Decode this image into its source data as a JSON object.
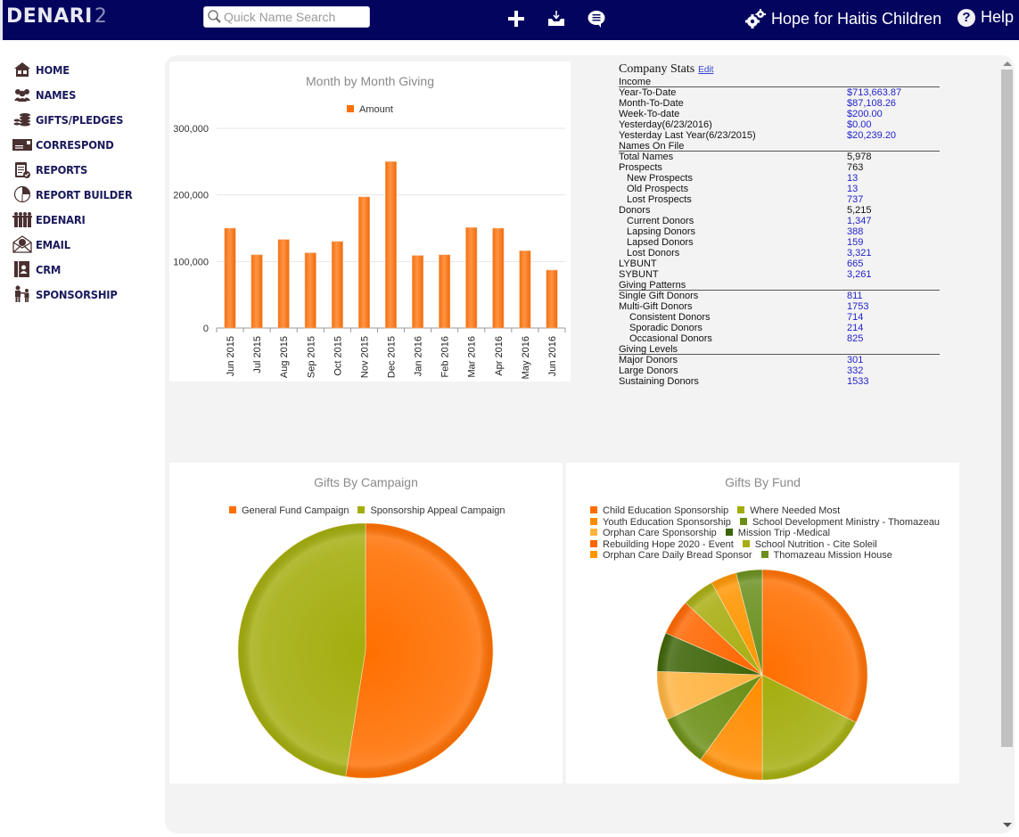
{
  "header": {
    "logo_main": "DENARI",
    "logo_num": "2",
    "search_placeholder": "Quick Name Search",
    "icons": [
      "plus-icon",
      "download-tray-icon",
      "chat-bubble-icon"
    ],
    "organization": "Hope for Haitis Children",
    "help_label": "Help"
  },
  "sidebar": {
    "items": [
      {
        "label": "HOME",
        "icon": "house-icon"
      },
      {
        "label": "NAMES",
        "icon": "people-icon"
      },
      {
        "label": "GIFTS/PLEDGES",
        "icon": "coins-icon"
      },
      {
        "label": "CORRESPOND",
        "icon": "letter-icon"
      },
      {
        "label": "REPORTS",
        "icon": "clipboard-check-icon"
      },
      {
        "label": "REPORT BUILDER",
        "icon": "pie-chart-icon"
      },
      {
        "label": "EDENARI",
        "icon": "group-hands-icon"
      },
      {
        "label": "EMAIL",
        "icon": "envelope-open-icon"
      },
      {
        "label": "CRM",
        "icon": "contact-book-icon"
      },
      {
        "label": "SPONSORSHIP",
        "icon": "adult-child-icon"
      }
    ]
  },
  "company_stats": {
    "title": "Company Stats",
    "edit_label": "Edit",
    "sections": [
      {
        "title": "Income",
        "rows": [
          {
            "label": "Year-To-Date",
            "value": "$713,663.87",
            "indent": 0,
            "link": true
          },
          {
            "label": "Month-To-Date",
            "value": "$87,108.26",
            "indent": 0,
            "link": true
          },
          {
            "label": "Week-To-date",
            "value": "$200.00",
            "indent": 0,
            "link": true
          },
          {
            "label": "Yesterday(6/23/2016)",
            "value": "$0.00",
            "indent": 0,
            "link": true
          },
          {
            "label": "Yesterday Last Year(6/23/2015)",
            "value": "$20,239.20",
            "indent": 0,
            "link": true
          }
        ]
      },
      {
        "title": "Names On File",
        "rows": [
          {
            "label": "Total Names",
            "value": "5,978",
            "indent": 0,
            "link": false
          },
          {
            "label": "Prospects",
            "value": "763",
            "indent": 0,
            "link": false
          },
          {
            "label": "New Prospects",
            "value": "13",
            "indent": 1,
            "link": true
          },
          {
            "label": "Old Prospects",
            "value": "13",
            "indent": 1,
            "link": true
          },
          {
            "label": "Lost Prospects",
            "value": "737",
            "indent": 1,
            "link": true
          },
          {
            "label": "Donors",
            "value": "5,215",
            "indent": 0,
            "link": false
          },
          {
            "label": "Current Donors",
            "value": "1,347",
            "indent": 1,
            "link": true
          },
          {
            "label": "Lapsing Donors",
            "value": "388",
            "indent": 1,
            "link": true
          },
          {
            "label": "Lapsed Donors",
            "value": "159",
            "indent": 1,
            "link": true
          },
          {
            "label": "Lost Donors",
            "value": "3,321",
            "indent": 1,
            "link": true
          },
          {
            "label": "LYBUNT",
            "value": "665",
            "indent": 0,
            "link": true
          },
          {
            "label": "SYBUNT",
            "value": "3,261",
            "indent": 0,
            "link": true
          }
        ]
      },
      {
        "title": "Giving Patterns",
        "rows": [
          {
            "label": "Single Gift Donors",
            "value": "811",
            "indent": 0,
            "link": true
          },
          {
            "label": "Multi-Gift Donors",
            "value": "1753",
            "indent": 0,
            "link": true
          },
          {
            "label": "Consistent Donors",
            "value": "714",
            "indent": 2,
            "link": true
          },
          {
            "label": "Sporadic Donors",
            "value": "214",
            "indent": 2,
            "link": true
          },
          {
            "label": "Occasional Donors",
            "value": "825",
            "indent": 2,
            "link": true
          }
        ]
      },
      {
        "title": "Giving Levels",
        "rows": [
          {
            "label": "Major Donors",
            "value": "301",
            "indent": 0,
            "link": true
          },
          {
            "label": "Large Donors",
            "value": "332",
            "indent": 0,
            "link": true
          },
          {
            "label": "Sustaining Donors",
            "value": "1533",
            "indent": 0,
            "link": true
          }
        ]
      }
    ]
  },
  "chart_data": [
    {
      "type": "bar",
      "title": "Month by Month Giving",
      "legend": [
        "Amount"
      ],
      "legend_position": "top-center",
      "categories": [
        "Jun 2015",
        "Jul 2015",
        "Aug 2015",
        "Sep 2015",
        "Oct 2015",
        "Nov 2015",
        "Dec 2015",
        "Jan 2016",
        "Feb 2016",
        "Mar 2016",
        "Apr 2016",
        "May 2016",
        "Jun 2016"
      ],
      "series": [
        {
          "name": "Amount",
          "color": "#ff7a1a",
          "values": [
            150000,
            110000,
            133000,
            113000,
            130000,
            197000,
            250000,
            109000,
            110000,
            151000,
            150000,
            116000,
            87000
          ]
        }
      ],
      "yticks": [
        "0",
        "100,000",
        "200,000",
        "300,000"
      ],
      "ylim": [
        0,
        300000
      ],
      "grid": true,
      "xlabel": "",
      "ylabel": ""
    },
    {
      "type": "pie",
      "title": "Gifts By Campaign",
      "legend_position": "top-center",
      "slices": [
        {
          "label": "General Fund Campaign",
          "value": 52.5,
          "color": "#ff6f00"
        },
        {
          "label": "Sponsorship Appeal Campaign",
          "value": 47.5,
          "color": "#a3ad0c"
        }
      ]
    },
    {
      "type": "pie",
      "title": "Gifts By Fund",
      "legend_position": "top-left",
      "slices": [
        {
          "label": "Child Education Sponsorship",
          "value": 32.5,
          "color": "#ff6f00"
        },
        {
          "label": "Where Needed Most",
          "value": 17.5,
          "color": "#a3ad0c"
        },
        {
          "label": "Youth Education Sponsorship",
          "value": 10,
          "color": "#ff8c00"
        },
        {
          "label": "School Development Ministry - Thomazeau",
          "value": 8,
          "color": "#6b8e14"
        },
        {
          "label": "Orphan Care Sponsorship",
          "value": 7.5,
          "color": "#ffb340"
        },
        {
          "label": "Mission Trip -Medical",
          "value": 6,
          "color": "#3d6408"
        },
        {
          "label": "Rebuilding Hope 2020 - Event",
          "value": 5.5,
          "color": "#ff6600"
        },
        {
          "label": "School Nutrition - Cite Soleil",
          "value": 5,
          "color": "#a8ad10"
        },
        {
          "label": "Orphan Care Daily Bread Sponsor",
          "value": 4,
          "color": "#ff9500"
        },
        {
          "label": "Thomazeau Mission House",
          "value": 4,
          "color": "#6a8f1e"
        }
      ]
    }
  ]
}
